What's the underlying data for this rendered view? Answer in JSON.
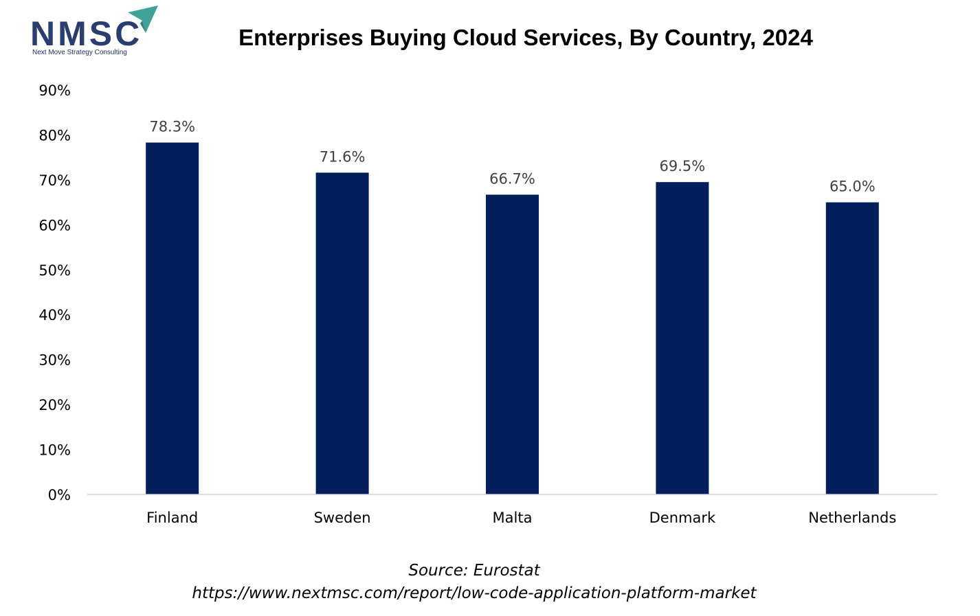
{
  "logo": {
    "text": "NMSC",
    "tagline": "Next Move Strategy Consulting",
    "colors": {
      "text": "#2b3d6e",
      "arrow": "#3fa39a"
    }
  },
  "chart_data": {
    "type": "bar",
    "title": "Enterprises Buying Cloud Services, By Country, 2024",
    "categories": [
      "Finland",
      "Sweden",
      "Malta",
      "Denmark",
      "Netherlands"
    ],
    "values": [
      78.3,
      71.6,
      66.7,
      69.5,
      65.0
    ],
    "value_labels": [
      "78.3%",
      "71.6%",
      "66.7%",
      "69.5%",
      "65.0%"
    ],
    "ylim": [
      0,
      90
    ],
    "y_ticks": [
      0,
      10,
      20,
      30,
      40,
      50,
      60,
      70,
      80,
      90
    ],
    "y_tick_labels": [
      "0%",
      "10%",
      "20%",
      "30%",
      "40%",
      "50%",
      "60%",
      "70%",
      "80%",
      "90%"
    ],
    "xlabel": "",
    "ylabel": "",
    "grid": false,
    "legend": "none",
    "bar_color": "#021f5c"
  },
  "source": {
    "text": "Source: Eurostat",
    "url": "https://www.nextmsc.com/report/low-code-application-platform-market"
  }
}
